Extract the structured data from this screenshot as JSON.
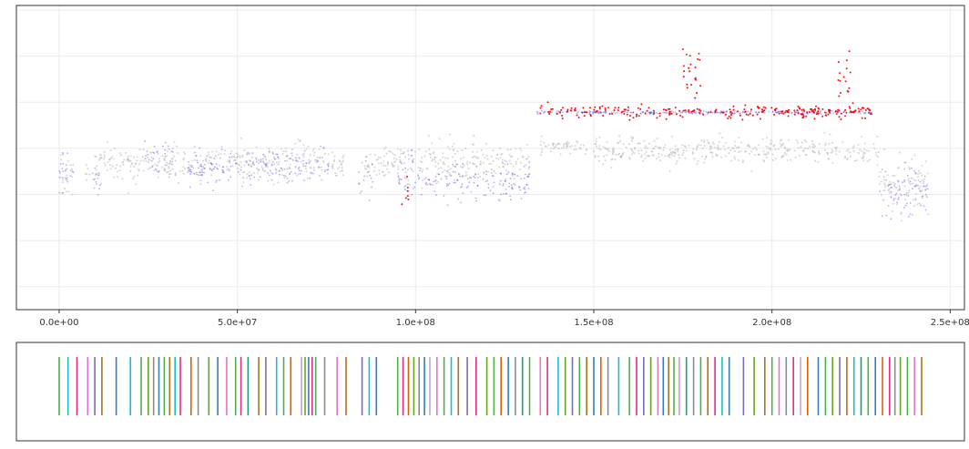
{
  "chart_data": [
    {
      "type": "scatter",
      "title": "",
      "xlabel": "",
      "ylabel": "",
      "xlim": [
        -12000000,
        254000000
      ],
      "ylim": [
        -3.0,
        3.6
      ],
      "grid": true,
      "legend": "none",
      "x_ticks": [
        {
          "value": 0,
          "label": "0.0e+00"
        },
        {
          "value": 50000000,
          "label": "5.0e+07"
        },
        {
          "value": 100000000,
          "label": "1.0e+08"
        },
        {
          "value": 150000000,
          "label": "1.5e+08"
        },
        {
          "value": 200000000,
          "label": "2.0e+08"
        },
        {
          "value": 250000000,
          "label": "2.5e+08"
        }
      ],
      "y_ticks_labeled": false,
      "y_gridlines": [
        -2.5,
        -1.5,
        -0.5,
        0.5,
        1.5,
        2.5,
        3.5
      ],
      "colors": {
        "grey": "#b3b3b3",
        "blue": "#1a1ae6",
        "red": "#ff0000"
      },
      "series": [
        {
          "color": "grey",
          "clusters": [
            {
              "x": [
                0,
                4000000
              ],
              "y": 0.0,
              "spread": 0.45
            },
            {
              "x": 8000000,
              "y": -0.1,
              "spread": 0.35
            },
            {
              "x": [
                10000000,
                40000000
              ],
              "y": 0.15,
              "spread": 0.35
            },
            {
              "x": [
                40000000,
                80000000
              ],
              "y": 0.2,
              "spread": 0.35
            },
            {
              "x": [
                85000000,
                132000000
              ],
              "y": 0.2,
              "spread": 0.4
            },
            {
              "x": [
                135000000,
                148000000
              ],
              "y": 0.55,
              "spread": 0.15
            },
            {
              "x": [
                150000000,
                230000000
              ],
              "y": 0.45,
              "spread": 0.25
            },
            {
              "x": [
                230000000,
                244000000
              ],
              "y": -0.3,
              "spread": 0.5
            }
          ]
        },
        {
          "color": "blue",
          "clusters": [
            {
              "x": [
                0,
                4000000
              ],
              "y": 0.0,
              "spread": 0.45
            },
            {
              "x": [
                9000000,
                12000000
              ],
              "y": -0.2,
              "spread": 0.35
            },
            {
              "x": [
                24000000,
                32000000
              ],
              "y": 0.3,
              "spread": 0.35
            },
            {
              "x": [
                36000000,
                76000000
              ],
              "y": 0.1,
              "spread": 0.35
            },
            {
              "x": [
                84000000,
                88000000
              ],
              "y": -0.2,
              "spread": 0.35
            },
            {
              "x": [
                95000000,
                100000000
              ],
              "y": -0.1,
              "spread": 0.45
            },
            {
              "x": [
                100000000,
                132000000
              ],
              "y": -0.2,
              "spread": 0.35
            },
            {
              "x": [
                134000000,
                228000000
              ],
              "y": 1.28,
              "spread": 0.03
            },
            {
              "x": [
                230000000,
                244000000
              ],
              "y": -0.4,
              "spread": 0.5
            }
          ]
        },
        {
          "color": "red",
          "clusters": [
            {
              "x": [
                96000000,
                98000000
              ],
              "y": -0.4,
              "spread": 0.35
            },
            {
              "x": [
                135000000,
                228000000
              ],
              "y": 1.3,
              "spread": 0.12
            },
            {
              "x": [
                175000000,
                180000000
              ],
              "y": 2.2,
              "spread": 0.5
            },
            {
              "x": [
                218000000,
                222000000
              ],
              "y": 2.0,
              "spread": 0.45
            }
          ]
        }
      ]
    },
    {
      "type": "strip",
      "title": "",
      "xlabel": "",
      "ylabel": "",
      "xlim": [
        -12000000,
        254000000
      ],
      "grid": false,
      "legend": "none",
      "palette": [
        "#4daf4a",
        "#377eb8",
        "#e7298a",
        "#a6761d",
        "#8c8c8c",
        "#17becf",
        "#66a61e",
        "#7570b3",
        "#d95f02",
        "#e377c2",
        "#c2a5cf",
        "#1b9e77"
      ],
      "x": [
        0,
        2500000,
        5000000,
        8000000,
        10000000,
        12000000,
        16000000,
        20000000,
        23000000,
        25000000,
        26500000,
        28000000,
        29500000,
        31000000,
        32500000,
        34000000,
        37000000,
        39000000,
        42000000,
        44500000,
        47000000,
        49500000,
        51000000,
        53000000,
        56000000,
        58000000,
        61000000,
        63000000,
        65000000,
        68000000,
        69000000,
        70000000,
        71000000,
        72000000,
        74500000,
        78000000,
        80500000,
        85000000,
        87000000,
        89000000,
        95000000,
        96500000,
        98000000,
        99500000,
        101000000,
        102500000,
        104000000,
        106000000,
        108000000,
        110000000,
        112000000,
        114500000,
        117000000,
        120000000,
        122000000,
        124000000,
        126000000,
        128000000,
        130000000,
        132000000,
        135000000,
        137000000,
        140000000,
        142000000,
        144000000,
        146000000,
        148000000,
        150000000,
        152000000,
        154000000,
        157000000,
        160000000,
        162000000,
        164000000,
        166000000,
        168000000,
        169500000,
        171000000,
        172500000,
        174000000,
        176000000,
        178000000,
        180000000,
        182000000,
        184000000,
        186000000,
        188000000,
        192000000,
        195000000,
        198000000,
        200000000,
        202000000,
        204000000,
        206000000,
        208000000,
        210000000,
        213000000,
        215000000,
        217000000,
        219000000,
        221000000,
        223000000,
        225000000,
        227000000,
        229000000,
        231000000,
        233000000,
        234500000,
        236000000,
        238000000,
        240000000,
        242000000
      ],
      "category": [
        0,
        5,
        2,
        9,
        7,
        3,
        1,
        5,
        0,
        6,
        4,
        1,
        0,
        3,
        5,
        2,
        8,
        4,
        6,
        1,
        9,
        0,
        2,
        11,
        3,
        7,
        5,
        0,
        8,
        10,
        6,
        1,
        2,
        0,
        4,
        9,
        3,
        7,
        5,
        1,
        0,
        2,
        8,
        6,
        4,
        1,
        10,
        9,
        0,
        5,
        3,
        7,
        2,
        6,
        0,
        8,
        1,
        4,
        11,
        0,
        9,
        2,
        5,
        6,
        7,
        0,
        3,
        1,
        8,
        4,
        5,
        0,
        2,
        7,
        6,
        9,
        1,
        3,
        0,
        10,
        11,
        4,
        0,
        8,
        2,
        5,
        1,
        7,
        6,
        3,
        0,
        9,
        4,
        2,
        10,
        8,
        1,
        0,
        6,
        7,
        3,
        5,
        11,
        0,
        1,
        8,
        2,
        4,
        6,
        0,
        9,
        3
      ]
    }
  ]
}
